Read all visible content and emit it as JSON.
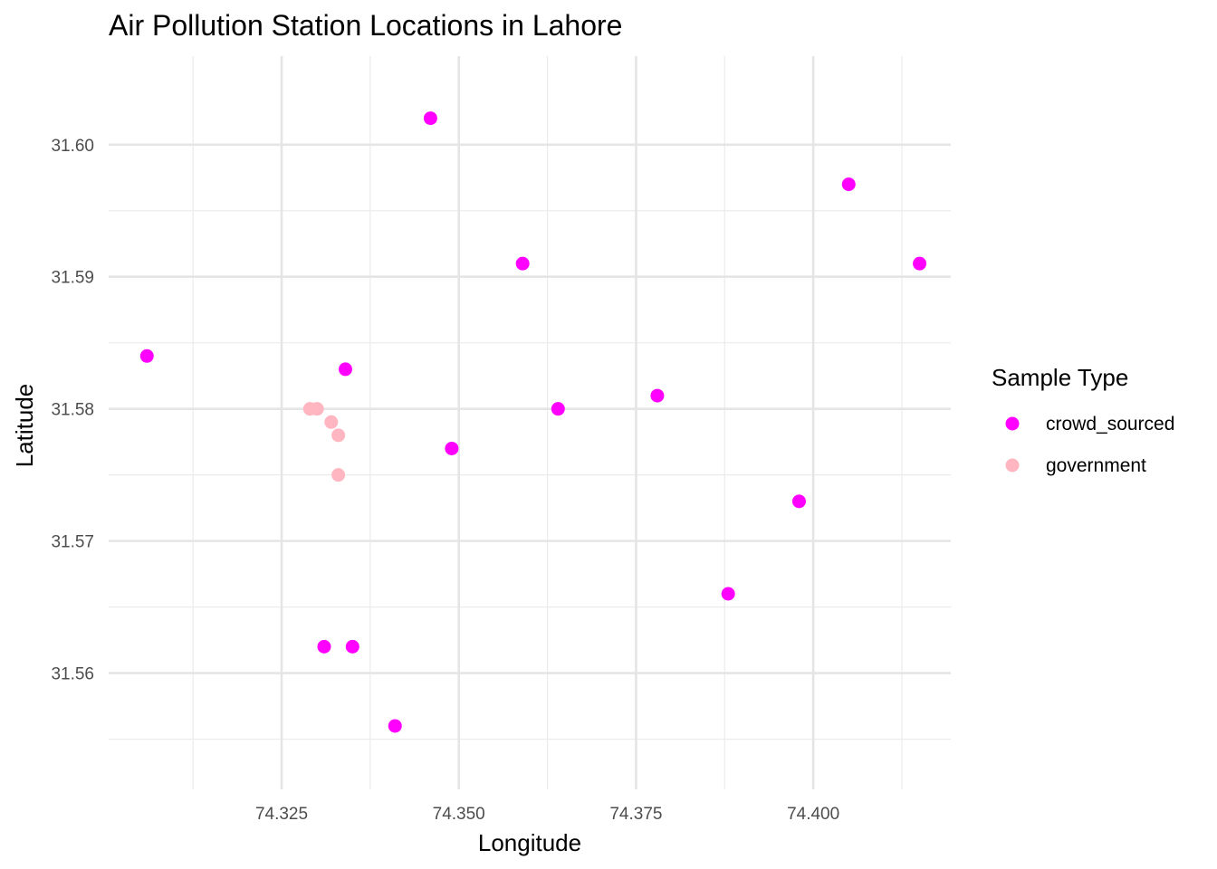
{
  "chart_data": {
    "type": "scatter",
    "title": "Air Pollution Station Locations in Lahore",
    "xlabel": "Longitude",
    "ylabel": "Latitude",
    "xlim": [
      74.3006,
      74.4194
    ],
    "ylim": [
      31.5512,
      31.6067
    ],
    "x_ticks": [
      74.325,
      74.35,
      74.375,
      74.4
    ],
    "x_tick_labels": [
      "74.325",
      "74.350",
      "74.375",
      "74.400"
    ],
    "x_minor_ticks": [
      74.3125,
      74.3375,
      74.3625,
      74.3875,
      74.4125
    ],
    "y_ticks": [
      31.56,
      31.57,
      31.58,
      31.59,
      31.6
    ],
    "y_tick_labels": [
      "31.56",
      "31.57",
      "31.58",
      "31.59",
      "31.60"
    ],
    "y_minor_ticks": [
      31.555,
      31.565,
      31.575,
      31.585,
      31.595
    ],
    "grid": true,
    "legend": {
      "title": "Sample Type",
      "position": "right"
    },
    "series": [
      {
        "name": "crowd_sourced",
        "color": "#ff00ff",
        "points": [
          {
            "x": 74.346,
            "y": 31.602
          },
          {
            "x": 74.405,
            "y": 31.597
          },
          {
            "x": 74.359,
            "y": 31.591
          },
          {
            "x": 74.415,
            "y": 31.591
          },
          {
            "x": 74.306,
            "y": 31.584
          },
          {
            "x": 74.334,
            "y": 31.583
          },
          {
            "x": 74.378,
            "y": 31.581
          },
          {
            "x": 74.364,
            "y": 31.58
          },
          {
            "x": 74.349,
            "y": 31.577
          },
          {
            "x": 74.398,
            "y": 31.573
          },
          {
            "x": 74.388,
            "y": 31.566
          },
          {
            "x": 74.331,
            "y": 31.562
          },
          {
            "x": 74.335,
            "y": 31.562
          },
          {
            "x": 74.341,
            "y": 31.556
          }
        ]
      },
      {
        "name": "government",
        "color": "#ffb6c1",
        "points": [
          {
            "x": 74.329,
            "y": 31.58
          },
          {
            "x": 74.33,
            "y": 31.58
          },
          {
            "x": 74.332,
            "y": 31.579
          },
          {
            "x": 74.333,
            "y": 31.578
          },
          {
            "x": 74.333,
            "y": 31.575
          }
        ]
      }
    ]
  }
}
